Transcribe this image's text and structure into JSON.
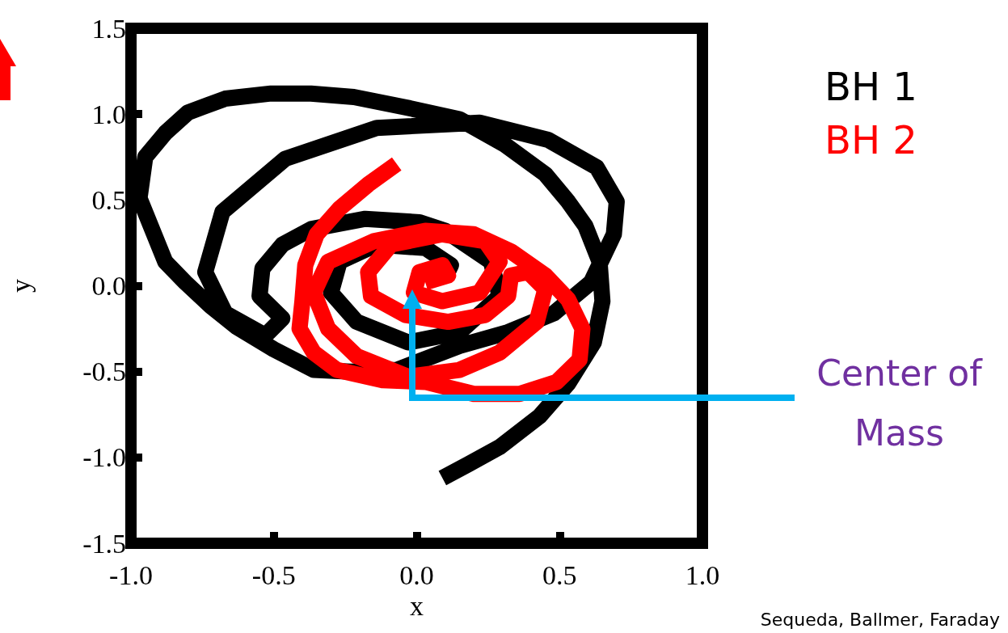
{
  "chart_data": {
    "type": "line",
    "xlabel": "x",
    "ylabel": "y",
    "xlim": [
      -1.0,
      1.0
    ],
    "ylim": [
      -1.5,
      1.5
    ],
    "xticks": [
      {
        "value": -1,
        "label": "-1.0"
      },
      {
        "value": -0.5,
        "label": "-0.5"
      },
      {
        "value": 0,
        "label": "0.0"
      },
      {
        "value": 0.5,
        "label": "0.5"
      },
      {
        "value": 1,
        "label": "1.0"
      }
    ],
    "yticks": [
      {
        "value": -1.5,
        "label": "-1.5"
      },
      {
        "value": -1,
        "label": "-1.0"
      },
      {
        "value": -0.5,
        "label": "-0.5"
      },
      {
        "value": 0,
        "label": "0.0"
      },
      {
        "value": 0.5,
        "label": "0.5"
      },
      {
        "value": 1,
        "label": "1.0"
      },
      {
        "value": 1.5,
        "label": "1.5"
      }
    ],
    "grid": false,
    "legend": "top right",
    "marker": "none",
    "line_style": "solid",
    "series": [
      {
        "name": "BH 1",
        "color": "#000000",
        "x": [
          0.09,
          0.18,
          0.29,
          0.43,
          0.53,
          0.62,
          0.65,
          0.64,
          0.59,
          0.53,
          0.45,
          0.31,
          0.15,
          -0.04,
          -0.22,
          -0.37,
          -0.51,
          -0.67,
          -0.8,
          -0.88,
          -0.95,
          -0.97,
          -0.88,
          -0.81,
          -0.72,
          -0.63,
          -0.5,
          -0.36,
          -0.23,
          -0.07,
          0.15,
          0.32,
          0.48,
          0.61,
          0.69,
          0.7,
          0.63,
          0.46,
          0.22,
          -0.14,
          -0.46,
          -0.68,
          -0.74,
          -0.67,
          -0.53,
          -0.47,
          -0.55,
          -0.54,
          -0.47,
          -0.37,
          -0.18,
          0.01,
          0.1,
          0.26,
          0.29,
          0.15,
          -0.03,
          -0.21,
          -0.3,
          -0.27,
          -0.14,
          0.03,
          0.12,
          0.1
        ],
        "values": [
          -1.12,
          -1.04,
          -0.94,
          -0.76,
          -0.57,
          -0.33,
          -0.09,
          0.14,
          0.35,
          0.49,
          0.65,
          0.82,
          0.97,
          1.04,
          1.1,
          1.12,
          1.12,
          1.09,
          1.01,
          0.89,
          0.75,
          0.51,
          0.14,
          0.02,
          -0.12,
          -0.24,
          -0.37,
          -0.49,
          -0.5,
          -0.49,
          -0.35,
          -0.27,
          -0.16,
          0.02,
          0.3,
          0.49,
          0.69,
          0.85,
          0.95,
          0.92,
          0.74,
          0.43,
          0.08,
          -0.16,
          -0.29,
          -0.19,
          -0.06,
          0.1,
          0.24,
          0.33,
          0.39,
          0.37,
          0.32,
          0.14,
          -0.06,
          -0.27,
          -0.33,
          -0.21,
          -0.04,
          0.14,
          0.24,
          0.22,
          0.12,
          0.05
        ]
      },
      {
        "name": "BH 2",
        "color": "#ff0000",
        "x": [
          -0.07,
          -0.17,
          -0.27,
          -0.35,
          -0.39,
          -0.4,
          -0.41,
          -0.36,
          -0.28,
          -0.12,
          0.03,
          0.2,
          0.36,
          0.49,
          0.57,
          0.58,
          0.53,
          0.45,
          0.33,
          0.2,
          0.03,
          -0.15,
          -0.31,
          -0.36,
          -0.31,
          -0.21,
          -0.03,
          0.15,
          0.29,
          0.42,
          0.45,
          0.39,
          0.33,
          0.32,
          0.24,
          0.11,
          -0.04,
          -0.16,
          -0.17,
          -0.09,
          0.09,
          0.24,
          0.29,
          0.22,
          0.09,
          -0.01,
          0.01,
          0.09,
          0.11,
          0.03
        ],
        "values": [
          0.71,
          0.59,
          0.45,
          0.3,
          0.12,
          -0.09,
          -0.25,
          -0.39,
          -0.49,
          -0.55,
          -0.56,
          -0.63,
          -0.63,
          -0.56,
          -0.43,
          -0.25,
          -0.08,
          0.06,
          0.2,
          0.3,
          0.32,
          0.26,
          0.14,
          -0.04,
          -0.25,
          -0.41,
          -0.53,
          -0.49,
          -0.39,
          -0.21,
          -0.02,
          0.08,
          0.06,
          -0.06,
          -0.17,
          -0.21,
          -0.17,
          -0.06,
          0.08,
          0.24,
          0.3,
          0.26,
          0.14,
          -0.04,
          -0.09,
          -0.04,
          0.08,
          0.12,
          0.06,
          0.02
        ]
      }
    ],
    "annotations": [
      "Center of Mass",
      "Sequeda, Ballmer, Faraday"
    ]
  }
}
